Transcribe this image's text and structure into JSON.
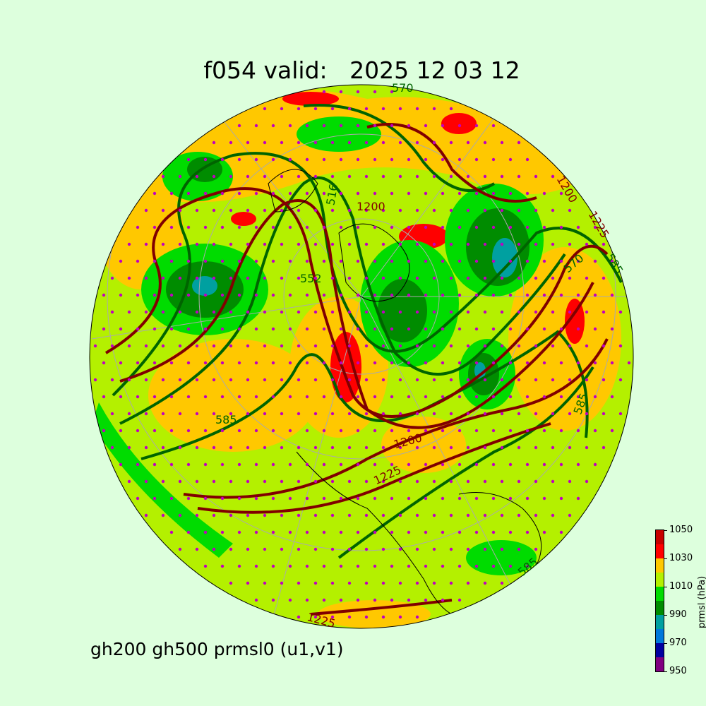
{
  "title": "f054 valid:   2025 12 03 12",
  "subtitle": "gh200 gh500 prmsl0 (u1,v1)",
  "colorbar": {
    "label": "prmsl (hPa)",
    "ticks": [
      "1050",
      "1030",
      "1010",
      "990",
      "970",
      "950"
    ],
    "levels": [
      950,
      960,
      970,
      980,
      990,
      1000,
      1010,
      1020,
      1030,
      1040,
      1050
    ],
    "colors": [
      "#800080",
      "#0000a0",
      "#0078dc",
      "#00a0a0",
      "#008c00",
      "#00dc00",
      "#b4f000",
      "#ffc800",
      "#ff0000",
      "#c80000"
    ]
  },
  "contour_labels": {
    "gh500": [
      "570",
      "516",
      "552",
      "585",
      "585",
      "585",
      "570",
      "585"
    ],
    "gh200": [
      "1200",
      "1200",
      "1225",
      "1225",
      "1225",
      "1200"
    ]
  },
  "line_colors": {
    "gh500": "#006400",
    "gh200": "#800000",
    "wind": "#000000",
    "wind_dots": "#c000c0"
  }
}
